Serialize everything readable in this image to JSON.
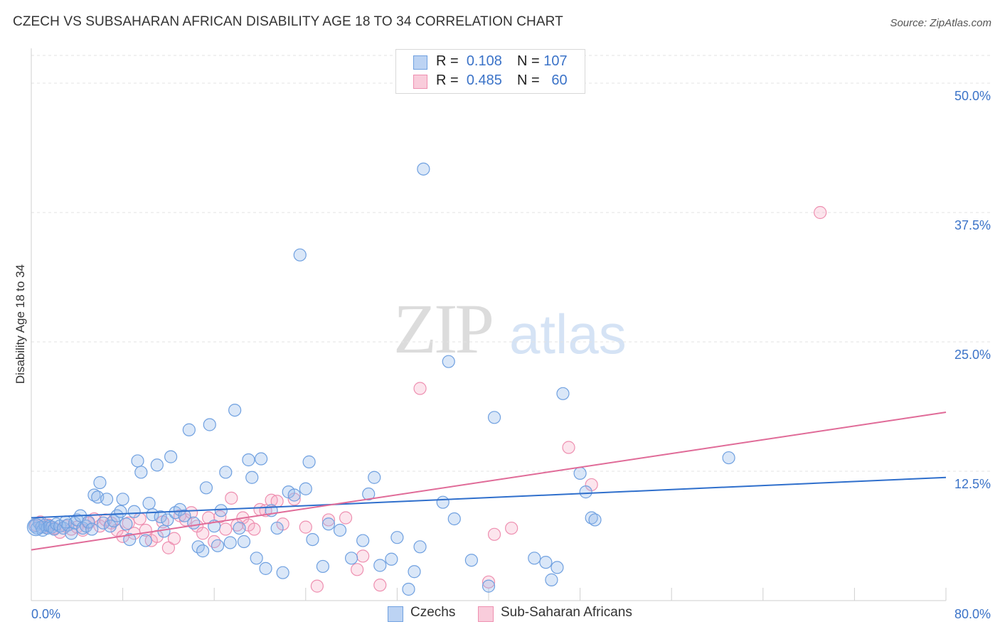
{
  "title": "CZECH VS SUBSAHARAN AFRICAN DISABILITY AGE 18 TO 34 CORRELATION CHART",
  "source": "Source: ZipAtlas.com",
  "watermark": {
    "part1": "ZIP",
    "part2": "atlas"
  },
  "legend": {
    "rows": [
      {
        "r_label": "R =",
        "r_value": "0.108",
        "n_label": "N =",
        "n_value": "107"
      },
      {
        "r_label": "R =",
        "r_value": "0.485",
        "n_label": "N =",
        "n_value": "60"
      }
    ]
  },
  "bottom_legend": {
    "czechs": "Czechs",
    "subsaharan": "Sub-Saharan Africans"
  },
  "colors": {
    "czechs": "#6fa0e0",
    "czechs_line": "#2f6fcc",
    "subsaharan": "#ee8fb0",
    "subsaharan_line": "#e06b98"
  },
  "chart_data": {
    "type": "scatter",
    "title": "CZECH VS SUBSAHARAN AFRICAN DISABILITY AGE 18 TO 34 CORRELATION CHART",
    "xlabel": "",
    "ylabel": "Disability Age 18 to 34",
    "xlim": [
      0,
      80
    ],
    "ylim": [
      0,
      50
    ],
    "x_tick_labels": [
      "0.0%",
      "80.0%"
    ],
    "y_ticks": [
      12.5,
      25.0,
      37.5,
      50.0
    ],
    "y_tick_labels": [
      "12.5%",
      "25.0%",
      "37.5%",
      "50.0%"
    ],
    "grid": true,
    "legend_position": "top-center",
    "series": [
      {
        "name": "Czechs",
        "r": 0.108,
        "n": 107,
        "trend": [
          [
            0,
            8.0
          ],
          [
            80,
            11.9
          ]
        ],
        "points": [
          [
            0.3,
            7.2
          ],
          [
            0.5,
            7.0
          ],
          [
            0.7,
            7.5
          ],
          [
            0.9,
            7.1
          ],
          [
            1.0,
            6.8
          ],
          [
            1.2,
            7.3
          ],
          [
            1.4,
            7.0
          ],
          [
            1.6,
            7.2
          ],
          [
            1.8,
            7.1
          ],
          [
            2.0,
            6.9
          ],
          [
            2.2,
            7.4
          ],
          [
            2.5,
            7.2
          ],
          [
            2.8,
            7.0
          ],
          [
            3.0,
            7.6
          ],
          [
            3.2,
            7.3
          ],
          [
            3.5,
            6.5
          ],
          [
            3.8,
            7.5
          ],
          [
            4.0,
            7.8
          ],
          [
            4.3,
            8.2
          ],
          [
            4.5,
            7.0
          ],
          [
            4.8,
            7.2
          ],
          [
            5.0,
            7.6
          ],
          [
            5.3,
            6.9
          ],
          [
            5.5,
            10.2
          ],
          [
            5.8,
            10.0
          ],
          [
            6.0,
            11.4
          ],
          [
            6.3,
            7.5
          ],
          [
            6.6,
            9.8
          ],
          [
            6.9,
            7.2
          ],
          [
            7.2,
            7.7
          ],
          [
            7.5,
            8.2
          ],
          [
            7.8,
            8.6
          ],
          [
            8.0,
            9.8
          ],
          [
            8.3,
            7.4
          ],
          [
            8.6,
            5.9
          ],
          [
            9.0,
            8.6
          ],
          [
            9.3,
            13.5
          ],
          [
            9.6,
            12.4
          ],
          [
            10.0,
            5.8
          ],
          [
            10.3,
            9.4
          ],
          [
            10.6,
            8.3
          ],
          [
            11.0,
            13.1
          ],
          [
            11.3,
            8.1
          ],
          [
            11.6,
            6.7
          ],
          [
            11.9,
            7.8
          ],
          [
            12.2,
            13.9
          ],
          [
            12.6,
            8.5
          ],
          [
            13.0,
            8.8
          ],
          [
            13.4,
            8.2
          ],
          [
            13.8,
            16.5
          ],
          [
            14.2,
            7.5
          ],
          [
            14.6,
            5.2
          ],
          [
            15.0,
            4.8
          ],
          [
            15.3,
            10.9
          ],
          [
            15.6,
            17.0
          ],
          [
            16.0,
            7.2
          ],
          [
            16.3,
            5.3
          ],
          [
            16.6,
            8.7
          ],
          [
            17.0,
            12.4
          ],
          [
            17.4,
            5.6
          ],
          [
            17.8,
            18.4
          ],
          [
            18.2,
            7.0
          ],
          [
            18.6,
            5.7
          ],
          [
            19.0,
            13.6
          ],
          [
            19.3,
            11.9
          ],
          [
            19.7,
            4.1
          ],
          [
            20.1,
            13.7
          ],
          [
            20.5,
            3.1
          ],
          [
            21.0,
            8.7
          ],
          [
            21.5,
            7.0
          ],
          [
            22.0,
            2.7
          ],
          [
            22.5,
            10.5
          ],
          [
            23.0,
            10.2
          ],
          [
            23.5,
            33.4
          ],
          [
            24.0,
            10.8
          ],
          [
            24.3,
            13.4
          ],
          [
            24.6,
            5.9
          ],
          [
            25.5,
            3.3
          ],
          [
            26.0,
            7.4
          ],
          [
            27.0,
            6.8
          ],
          [
            28.0,
            4.1
          ],
          [
            29.0,
            5.8
          ],
          [
            29.5,
            10.3
          ],
          [
            30.0,
            11.9
          ],
          [
            30.5,
            3.4
          ],
          [
            31.5,
            4.0
          ],
          [
            32.0,
            6.1
          ],
          [
            33.0,
            1.1
          ],
          [
            33.5,
            2.8
          ],
          [
            34.0,
            5.2
          ],
          [
            34.3,
            41.7
          ],
          [
            36.0,
            9.5
          ],
          [
            36.5,
            23.1
          ],
          [
            37.0,
            7.9
          ],
          [
            38.5,
            3.9
          ],
          [
            40.0,
            1.4
          ],
          [
            40.5,
            17.7
          ],
          [
            44.0,
            4.1
          ],
          [
            45.0,
            3.7
          ],
          [
            45.5,
            2.0
          ],
          [
            46.0,
            3.2
          ],
          [
            46.5,
            20.0
          ],
          [
            48.0,
            12.3
          ],
          [
            48.5,
            10.5
          ],
          [
            49.0,
            8.0
          ],
          [
            49.3,
            7.8
          ],
          [
            61.0,
            13.8
          ]
        ]
      },
      {
        "name": "Sub-Saharan Africans",
        "r": 0.485,
        "n": 60,
        "trend": [
          [
            0,
            4.9
          ],
          [
            80,
            18.2
          ]
        ],
        "points": [
          [
            0.4,
            7.3
          ],
          [
            0.8,
            7.6
          ],
          [
            1.2,
            7.1
          ],
          [
            1.5,
            7.3
          ],
          [
            2.0,
            7.0
          ],
          [
            2.5,
            6.6
          ],
          [
            3.0,
            7.2
          ],
          [
            3.5,
            6.9
          ],
          [
            4.0,
            7.1
          ],
          [
            4.5,
            6.8
          ],
          [
            5.0,
            7.5
          ],
          [
            5.5,
            7.9
          ],
          [
            6.0,
            7.2
          ],
          [
            6.5,
            7.8
          ],
          [
            7.0,
            7.5
          ],
          [
            7.5,
            6.8
          ],
          [
            8.0,
            6.2
          ],
          [
            8.5,
            7.5
          ],
          [
            9.0,
            6.5
          ],
          [
            9.5,
            7.9
          ],
          [
            10.0,
            6.8
          ],
          [
            10.5,
            5.8
          ],
          [
            11.0,
            6.2
          ],
          [
            11.5,
            7.6
          ],
          [
            12.0,
            5.1
          ],
          [
            12.5,
            6.0
          ],
          [
            13.0,
            8.2
          ],
          [
            13.5,
            7.8
          ],
          [
            14.0,
            8.5
          ],
          [
            14.5,
            7.2
          ],
          [
            15.0,
            6.5
          ],
          [
            15.5,
            8.0
          ],
          [
            16.0,
            5.7
          ],
          [
            16.5,
            8.1
          ],
          [
            17.0,
            6.9
          ],
          [
            17.5,
            9.9
          ],
          [
            18.0,
            7.3
          ],
          [
            18.5,
            8.0
          ],
          [
            19.0,
            7.3
          ],
          [
            19.5,
            6.9
          ],
          [
            20.0,
            8.8
          ],
          [
            20.5,
            8.7
          ],
          [
            21.0,
            9.7
          ],
          [
            21.5,
            9.6
          ],
          [
            22.0,
            7.4
          ],
          [
            23.0,
            9.8
          ],
          [
            24.0,
            7.1
          ],
          [
            25.0,
            1.4
          ],
          [
            26.0,
            7.8
          ],
          [
            27.5,
            8.0
          ],
          [
            28.5,
            3.0
          ],
          [
            29.0,
            4.3
          ],
          [
            30.5,
            1.5
          ],
          [
            34.0,
            20.5
          ],
          [
            40.0,
            1.8
          ],
          [
            40.5,
            6.4
          ],
          [
            42.0,
            7.0
          ],
          [
            47.0,
            14.8
          ],
          [
            49.0,
            11.2
          ],
          [
            69.0,
            37.5
          ]
        ]
      }
    ]
  }
}
